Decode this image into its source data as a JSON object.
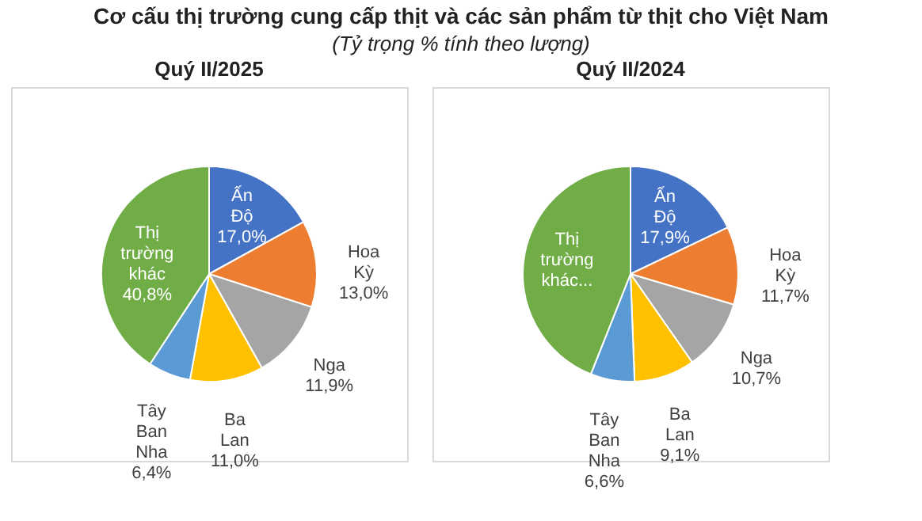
{
  "chart_data": [
    {
      "type": "other",
      "title": "Cơ cấu thị trường cung cấp thịt và các sản phẩm từ thịt cho Việt Nam",
      "subtitle": "(Tỷ trọng % tính theo lượng)"
    },
    {
      "type": "pie",
      "title": "Quý II/2025",
      "categories": [
        "Ấn Độ",
        "Hoa Kỳ",
        "Nga",
        "Ba Lan",
        "Tây Ban Nha",
        "Thị trường khác"
      ],
      "values": [
        17.0,
        13.0,
        11.9,
        11.0,
        6.4,
        40.8
      ],
      "value_labels": [
        "17,0%",
        "13,0%",
        "11,9%",
        "11,0%",
        "6,4%",
        "40,8%"
      ],
      "colors": [
        "#4472c4",
        "#ed7d31",
        "#a5a5a5",
        "#ffc000",
        "#5b9bd5",
        "#70ad47"
      ]
    },
    {
      "type": "pie",
      "title": "Quý II/2024",
      "categories": [
        "Ấn Độ",
        "Hoa Kỳ",
        "Nga",
        "Ba Lan",
        "Tây Ban Nha",
        "Thị trường khác..."
      ],
      "values": [
        17.9,
        11.7,
        10.7,
        9.1,
        6.6,
        44.0
      ],
      "value_labels": [
        "17,9%",
        "11,7%",
        "10,7%",
        "9,1%",
        "6,6%",
        null
      ],
      "colors": [
        "#4472c4",
        "#ed7d31",
        "#a5a5a5",
        "#ffc000",
        "#5b9bd5",
        "#70ad47"
      ]
    }
  ]
}
